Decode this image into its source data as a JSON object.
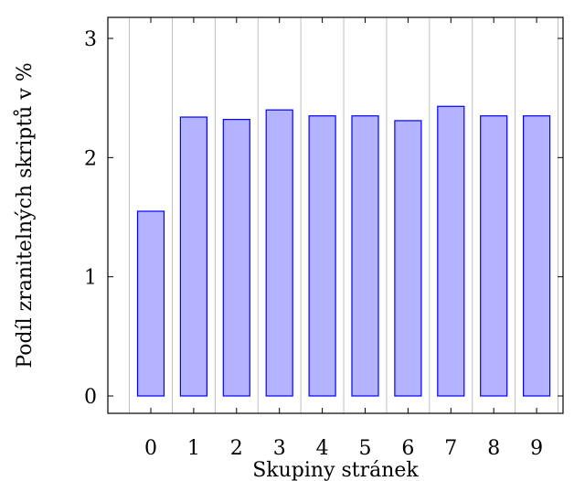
{
  "chart_data": {
    "type": "bar",
    "categories": [
      "0",
      "1",
      "2",
      "3",
      "4",
      "5",
      "6",
      "7",
      "8",
      "9"
    ],
    "values": [
      1.55,
      2.34,
      2.32,
      2.4,
      2.35,
      2.35,
      2.31,
      2.43,
      2.35,
      2.35
    ],
    "xlabel": "Skupiny stránek",
    "ylabel": "Podíl zranitelných skriptů v %",
    "ylim": [
      0,
      3
    ],
    "yticks": [
      0,
      1,
      2,
      3
    ],
    "grid": "vertical",
    "colors": {
      "bar_fill": "#b3b3ff",
      "bar_stroke": "#0000ff",
      "grid": "#bfbfbf",
      "axis": "#000000"
    }
  }
}
